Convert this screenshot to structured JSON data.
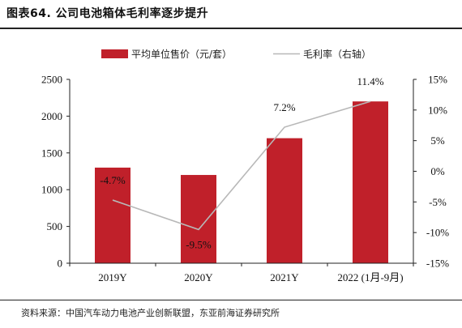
{
  "figure": {
    "title": "图表64. 公司电池箱体毛利率逐步提升",
    "source": "资料来源：中国汽车动力电池产业创新联盟，东亚前海证券研究所"
  },
  "colors": {
    "bar": "#c0202a",
    "line": "#b8b8b8",
    "axis": "#222222"
  },
  "chart_data": {
    "type": "bar+line",
    "categories": [
      "2019Y",
      "2020Y",
      "2021Y",
      "2022 (1月-9月)"
    ],
    "series": [
      {
        "name": "平均单位售价（元/套）",
        "type": "bar",
        "axis": "left",
        "values": [
          1300,
          1200,
          1700,
          2200
        ]
      },
      {
        "name": "毛利率（右轴）",
        "type": "line",
        "axis": "right",
        "values": [
          -4.7,
          -9.5,
          7.2,
          11.4
        ],
        "labels": [
          "-4.7%",
          "-9.5%",
          "7.2%",
          "11.4%"
        ]
      }
    ],
    "left_axis": {
      "min": 0,
      "max": 2500,
      "ticks": [
        0,
        500,
        1000,
        1500,
        2000,
        2500
      ]
    },
    "right_axis": {
      "min": -15,
      "max": 15,
      "ticks": [
        "-15%",
        "-10%",
        "-5%",
        "0%",
        "5%",
        "10%",
        "15%"
      ]
    },
    "legend_position": "top-center",
    "grid": false
  }
}
